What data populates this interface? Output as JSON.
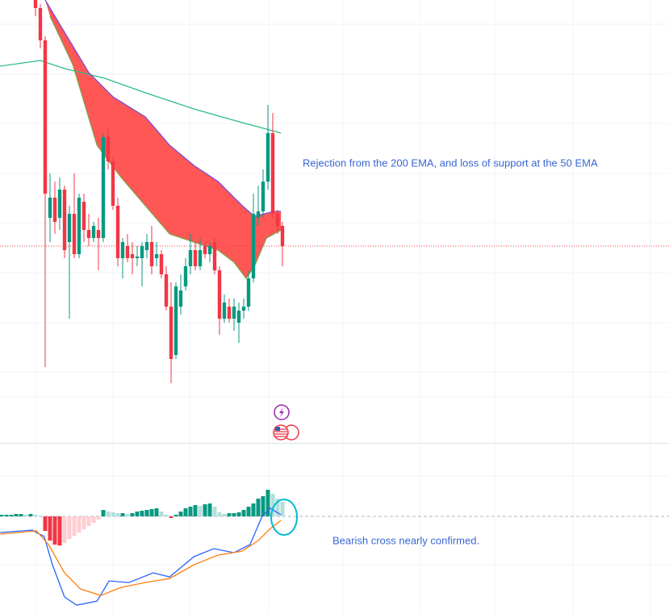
{
  "chart_data": [
    {
      "type": "candlestick",
      "annotation": "Rejection from the 200 EMA, and loss of support at the 50 EMA",
      "xlim": [
        -7.33,
        130.83
      ],
      "ylim": [
        0,
        550
      ],
      "up_color": "#089981",
      "down_color": "#f23645",
      "x": [
        0,
        1,
        2,
        3,
        4,
        5,
        6,
        7,
        8,
        9,
        10,
        11,
        12,
        13,
        14,
        15,
        16,
        17,
        18,
        19,
        20,
        21,
        22,
        23,
        24,
        25,
        26,
        27,
        28,
        29,
        30,
        31,
        32,
        33,
        34,
        35,
        36,
        37,
        38,
        39,
        40,
        41,
        42,
        43,
        44,
        45,
        46,
        47,
        48,
        49,
        50,
        51
      ],
      "open": [
        550,
        540,
        500,
        280,
        305,
        280,
        315,
        250,
        285,
        235,
        300,
        265,
        255,
        265,
        255,
        380,
        350,
        295,
        230,
        245,
        235,
        230,
        230,
        240,
        250,
        230,
        235,
        210,
        170,
        110,
        170,
        195,
        220,
        240,
        220,
        245,
        235,
        250,
        215,
        155,
        170,
        155,
        150,
        165,
        170,
        205,
        280,
        288,
        325,
        385,
        285,
        270
      ],
      "close": [
        540,
        500,
        310,
        305,
        275,
        315,
        240,
        285,
        235,
        305,
        265,
        255,
        270,
        255,
        380,
        350,
        295,
        230,
        250,
        230,
        230,
        232,
        245,
        250,
        220,
        235,
        210,
        170,
        105,
        195,
        190,
        220,
        240,
        220,
        240,
        235,
        245,
        215,
        155,
        175,
        155,
        170,
        165,
        170,
        205,
        285,
        288,
        325,
        385,
        285,
        270,
        245
      ],
      "high": [
        550,
        545,
        505,
        335,
        325,
        330,
        320,
        295,
        335,
        310,
        310,
        285,
        275,
        280,
        385,
        390,
        355,
        305,
        255,
        260,
        250,
        245,
        250,
        260,
        270,
        250,
        240,
        220,
        200,
        200,
        210,
        230,
        260,
        250,
        255,
        250,
        250,
        255,
        220,
        185,
        180,
        180,
        175,
        180,
        215,
        310,
        320,
        340,
        420,
        410,
        290,
        275
      ],
      "low": [
        530,
        490,
        95,
        250,
        260,
        265,
        230,
        155,
        230,
        230,
        250,
        245,
        250,
        215,
        250,
        340,
        290,
        220,
        205,
        225,
        210,
        220,
        195,
        230,
        210,
        220,
        205,
        165,
        75,
        105,
        160,
        190,
        210,
        215,
        215,
        230,
        225,
        210,
        135,
        150,
        150,
        140,
        125,
        155,
        165,
        200,
        270,
        280,
        315,
        280,
        260,
        220
      ],
      "lines": [
        {
          "color": "#2ebd85",
          "x": [
            -7.3,
            1,
            6,
            14.3,
            22.7,
            32.7,
            42.7,
            47.7,
            50.7
          ],
          "values": [
            468,
            475,
            465,
            453,
            435,
            415,
            398,
            390,
            385
          ]
        },
        {
          "color": "#7b4fd6",
          "x": [
            2,
            6,
            11,
            16,
            22.7,
            27.7,
            32.7,
            37.7,
            42.7,
            45.2,
            49.3,
            50.7
          ],
          "values": [
            550,
            510,
            460,
            430,
            405,
            370,
            345,
            325,
            295,
            282,
            288,
            288
          ]
        },
        {
          "color": "#7fa046",
          "x": [
            3,
            7.7,
            12.7,
            17.7,
            22.7,
            27.7,
            32.7,
            37.7,
            41,
            43.5,
            45.2,
            47.7,
            50.7
          ],
          "values": [
            530,
            470,
            370,
            330,
            295,
            260,
            250,
            240,
            225,
            205,
            220,
            255,
            265
          ]
        }
      ],
      "cloud_color": "#ff4d4d",
      "last_price": 245,
      "last_price_color": "#f23645"
    },
    {
      "type": "macd",
      "annotation": "Bearish cross nearly confirmed.",
      "xlim": [
        -7.33,
        130.83
      ],
      "ylim": [
        -120,
        90
      ],
      "grow_up_color": "#089981",
      "fall_up_color": "#b2dfdb",
      "grow_down_color": "#f23645",
      "fall_down_color": "#ffcdd2",
      "x": [
        -7,
        -6,
        -5,
        -4,
        -3,
        -2,
        -1,
        0,
        1,
        2,
        3,
        4,
        5,
        6,
        7,
        8,
        9,
        10,
        11,
        12,
        13,
        14,
        15,
        16,
        17,
        18,
        19,
        20,
        21,
        22,
        23,
        24,
        25,
        26,
        27,
        28,
        29,
        30,
        31,
        32,
        33,
        34,
        35,
        36,
        37,
        38,
        39,
        40,
        41,
        42,
        43,
        44,
        45,
        46,
        47,
        48,
        49,
        50,
        51
      ],
      "values": [
        2,
        2,
        2,
        3,
        3,
        2,
        3,
        2,
        1,
        -18,
        -30,
        -35,
        -36,
        -33,
        -28,
        -24,
        -20,
        -16,
        -12,
        -8,
        -4,
        8,
        6,
        5,
        4,
        4,
        3,
        4,
        6,
        7,
        8,
        9,
        10,
        6,
        2,
        -2,
        2,
        6,
        10,
        12,
        14,
        13,
        15,
        16,
        12,
        5,
        3,
        4,
        4,
        5,
        8,
        12,
        16,
        22,
        25,
        33,
        28,
        22,
        18
      ],
      "lines": [
        {
          "color": "#2962ff",
          "x": [
            -7.3,
            -0.7,
            1.8,
            3.5,
            6,
            8.5,
            12.7,
            15.2,
            19.3,
            24.3,
            27.7,
            32.7,
            36.8,
            41,
            44.3,
            46.8,
            48.5,
            50.7
          ],
          "values": [
            -20,
            -17,
            -25,
            -60,
            -100,
            -110,
            -105,
            -80,
            -82,
            -70,
            -75,
            -50,
            -40,
            -45,
            -35,
            0,
            10,
            2
          ]
        },
        {
          "color": "#ff7f0e",
          "x": [
            -7.3,
            0.2,
            2.7,
            6,
            9.3,
            13.5,
            17.7,
            22.7,
            27.7,
            32.7,
            37.7,
            42.7,
            46,
            48.5,
            50.7
          ],
          "values": [
            -22,
            -18,
            -35,
            -70,
            -90,
            -98,
            -88,
            -82,
            -77,
            -60,
            -48,
            -43,
            -30,
            -15,
            -5
          ]
        }
      ]
    }
  ]
}
